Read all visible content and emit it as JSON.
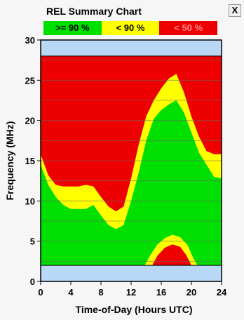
{
  "window": {
    "title": "REL Summary Chart",
    "close_label": "X"
  },
  "legend": [
    {
      "label": ">= 90 %",
      "color": "#00e000"
    },
    {
      "label": "< 90 %",
      "color": "#ffff00"
    },
    {
      "label": "< 50 %",
      "color": "#ee0000"
    }
  ],
  "colors": {
    "high": "#00e000",
    "mid": "#ffff00",
    "low": "#ee0000",
    "band": "#b9d8f5"
  },
  "chart_data": {
    "type": "area",
    "title": "REL Summary Chart",
    "xlabel": "Time-of-Day (Hours UTC)",
    "ylabel": "Frequency (MHz)",
    "xlim": [
      0,
      24
    ],
    "ylim": [
      0,
      30
    ],
    "x_ticks": [
      0,
      4,
      8,
      12,
      16,
      20,
      24
    ],
    "y_ticks": [
      0,
      5,
      10,
      15,
      20,
      25,
      30
    ],
    "grid": true,
    "legend_position": "top",
    "frequency_range_mhz": [
      2,
      28
    ],
    "series": [
      {
        "name": "< 90 %",
        "x": [
          0,
          1,
          2,
          3,
          4,
          5,
          6,
          7,
          8,
          9,
          10,
          11,
          12,
          13,
          14,
          15,
          16,
          17,
          18,
          19,
          20,
          21,
          22,
          23,
          24
        ],
        "upper": [
          15.8,
          13.2,
          12.0,
          11.8,
          11.8,
          11.8,
          12.0,
          11.8,
          10.5,
          9.3,
          8.7,
          9.3,
          12.8,
          17.0,
          20.5,
          22.5,
          24.0,
          25.2,
          25.8,
          23.5,
          20.5,
          18.0,
          16.2,
          15.8,
          15.8
        ],
        "lower": [
          14.5,
          12.0,
          10.5,
          9.5,
          9.0,
          9.0,
          9.0,
          9.5,
          8.2,
          7.0,
          6.5,
          7.0,
          10.0,
          13.5,
          17.5,
          20.2,
          21.3,
          22.0,
          22.5,
          21.0,
          18.5,
          16.0,
          14.5,
          13.0,
          12.8
        ]
      },
      {
        "name": "< 90 % (low band)",
        "x": [
          13.8,
          14.5,
          15.5,
          16.5,
          17.5,
          18.5,
          19.5,
          20.2,
          20.8
        ],
        "upper": [
          2.0,
          3.2,
          4.6,
          5.4,
          5.8,
          5.5,
          4.5,
          3.0,
          2.0
        ]
      },
      {
        "name": "< 50 % (low band)",
        "x": [
          14.8,
          15.5,
          16.5,
          17.5,
          18.5,
          19.3,
          20.0
        ],
        "upper": [
          2.0,
          3.2,
          4.2,
          4.6,
          4.3,
          3.3,
          2.0
        ]
      }
    ]
  }
}
